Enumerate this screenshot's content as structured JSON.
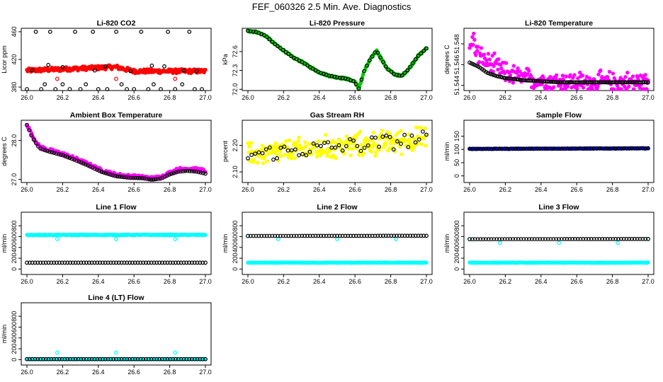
{
  "figure_title": "FEF_060326  2.5 Min. Ave. Diagnostics",
  "chart_data": [
    {
      "type": "scatter",
      "title": "Li-820 CO2",
      "xlabel": "",
      "ylabel": "Licor ppm",
      "xlim": [
        26.0,
        27.0
      ],
      "ylim": [
        375,
        465
      ],
      "xticks": [
        "26.0",
        "26.2",
        "26.4",
        "26.6",
        "26.8",
        "27.0"
      ],
      "yticks": [
        "380",
        "420",
        "460"
      ],
      "series": [
        {
          "name": "high-rate",
          "color": "#ff0000",
          "style": "dense",
          "x": [
            26.0,
            26.5,
            26.6,
            27.0
          ],
          "values": [
            404,
            409,
            403,
            403
          ],
          "spread": 3
        },
        {
          "name": "outliers",
          "color": "#ff0000",
          "style": "sparse",
          "x": [
            26.17,
            26.5,
            26.83
          ],
          "values": [
            392,
            392,
            392
          ]
        },
        {
          "name": "averages",
          "color": "#000000",
          "style": "open",
          "x": [
            26.0,
            26.05,
            26.08,
            26.1,
            26.13,
            26.16,
            26.2,
            26.24,
            26.27,
            26.3,
            26.33,
            26.37,
            26.4,
            26.45,
            26.5,
            26.53,
            26.56,
            26.6,
            26.64,
            26.68,
            26.71,
            26.75,
            26.79,
            26.83,
            26.87,
            26.91,
            26.94,
            26.98,
            26.03,
            26.2,
            26.38,
            26.58,
            26.77,
            26.95,
            26.12,
            26.44,
            26.7,
            26.88
          ],
          "values": [
            376,
            460,
            376,
            384,
            460,
            376,
            384,
            376,
            460,
            376,
            384,
            460,
            376,
            376,
            460,
            384,
            376,
            376,
            460,
            376,
            384,
            376,
            460,
            376,
            384,
            460,
            376,
            376,
            404,
            409,
            404,
            403,
            410,
            403,
            412,
            410,
            411,
            404
          ]
        }
      ]
    },
    {
      "type": "scatter",
      "title": "Li-820 Pressure",
      "xlabel": "",
      "ylabel": "kPa",
      "xlim": [
        26.0,
        27.0
      ],
      "ylim": [
        71.98,
        72.97
      ],
      "xticks": [
        "26.0",
        "26.2",
        "26.4",
        "26.6",
        "26.8",
        "27.0"
      ],
      "yticks": [
        "72.0",
        "72.3",
        "72.6"
      ],
      "series": [
        {
          "name": "high-rate",
          "color": "#00cc00",
          "style": "dense",
          "x": [
            26.0,
            26.05,
            26.1,
            26.15,
            26.2,
            26.25,
            26.3,
            26.35,
            26.4,
            26.45,
            26.5,
            26.55,
            26.6,
            26.62,
            26.65,
            26.68,
            26.72,
            26.75,
            26.78,
            26.82,
            26.86,
            26.9,
            26.95,
            27.0
          ],
          "values": [
            72.93,
            72.91,
            72.85,
            72.72,
            72.62,
            72.51,
            72.44,
            72.35,
            72.27,
            72.22,
            72.19,
            72.17,
            72.12,
            72.0,
            72.28,
            72.45,
            72.62,
            72.47,
            72.33,
            72.24,
            72.21,
            72.32,
            72.52,
            72.65
          ],
          "spread": 0.015
        },
        {
          "name": "averages",
          "color": "#000000",
          "style": "open",
          "x": [
            26.0,
            26.05,
            26.1,
            26.15,
            26.2,
            26.25,
            26.3,
            26.35,
            26.4,
            26.45,
            26.5,
            26.55,
            26.6,
            26.62,
            26.65,
            26.68,
            26.72,
            26.75,
            26.78,
            26.82,
            26.86,
            26.9,
            26.95,
            27.0
          ],
          "values": [
            72.93,
            72.91,
            72.85,
            72.72,
            72.62,
            72.51,
            72.44,
            72.35,
            72.27,
            72.22,
            72.19,
            72.17,
            72.12,
            72.0,
            72.28,
            72.45,
            72.62,
            72.47,
            72.33,
            72.24,
            72.21,
            72.32,
            72.52,
            72.65
          ],
          "step": 6
        }
      ]
    },
    {
      "type": "scatter",
      "title": "Li-820 Temperature",
      "xlabel": "",
      "ylabel": "degrees C",
      "xlim": [
        26.0,
        27.0
      ],
      "ylim": [
        51.5435,
        51.5495
      ],
      "xticks": [
        "26.0",
        "26.2",
        "26.4",
        "26.6",
        "26.8",
        "27.0"
      ],
      "yticks": [
        "51.544",
        "51.546",
        "51.548"
      ],
      "series": [
        {
          "name": "high-rate",
          "color": "#ff00ff",
          "style": "noisy",
          "x": [
            26.0,
            26.02,
            26.05,
            26.1,
            26.15,
            26.2,
            26.3,
            26.4,
            26.5,
            26.6,
            26.7,
            26.8,
            26.9,
            27.0
          ],
          "values": [
            51.5475,
            51.5485,
            51.5468,
            51.5462,
            51.5458,
            51.5452,
            51.5447,
            51.5445,
            51.5444,
            51.5443,
            51.5443,
            51.5443,
            51.5443,
            51.5443
          ],
          "spread": 0.0009
        },
        {
          "name": "averages",
          "color": "#000000",
          "style": "open",
          "x": [
            26.0,
            26.05,
            26.1,
            26.15,
            26.2,
            26.3,
            26.4,
            26.5,
            26.6,
            26.7,
            26.8,
            26.9,
            27.0
          ],
          "values": [
            51.5462,
            51.5458,
            51.5452,
            51.5449,
            51.5447,
            51.5445,
            51.5444,
            51.5443,
            51.5443,
            51.5443,
            51.5443,
            51.5443,
            51.5443
          ],
          "step": 4
        }
      ]
    },
    {
      "type": "scatter",
      "title": "Ambient Box Temperature",
      "xlabel": "",
      "ylabel": "degrees C",
      "xlim": [
        26.0,
        27.0
      ],
      "ylim": [
        26.92,
        28.52
      ],
      "xticks": [
        "26.0",
        "26.2",
        "26.4",
        "26.6",
        "26.8",
        "27.0"
      ],
      "yticks": [
        "27.0",
        "28.0"
      ],
      "series": [
        {
          "name": "high-rate",
          "color": "#ff00ff",
          "style": "dense",
          "x": [
            26.0,
            26.03,
            26.07,
            26.12,
            26.2,
            26.28,
            26.35,
            26.42,
            26.5,
            26.58,
            26.65,
            26.7,
            26.75,
            26.8,
            26.85,
            26.9,
            26.95,
            27.0
          ],
          "values": [
            28.42,
            28.12,
            27.84,
            27.76,
            27.66,
            27.52,
            27.38,
            27.23,
            27.12,
            27.08,
            27.06,
            27.03,
            27.06,
            27.17,
            27.26,
            27.28,
            27.26,
            27.22
          ],
          "spread": 0.04
        },
        {
          "name": "averages",
          "color": "#000000",
          "style": "open",
          "x": [
            26.0,
            26.03,
            26.07,
            26.12,
            26.2,
            26.28,
            26.35,
            26.42,
            26.5,
            26.58,
            26.65,
            26.7,
            26.75,
            26.8,
            26.85,
            26.9,
            26.95,
            27.0
          ],
          "values": [
            28.4,
            28.08,
            27.8,
            27.72,
            27.62,
            27.48,
            27.34,
            27.19,
            27.08,
            27.04,
            27.03,
            26.99,
            27.02,
            27.13,
            27.2,
            27.22,
            27.2,
            27.15
          ],
          "step": 5
        }
      ]
    },
    {
      "type": "scatter",
      "title": "Gas Stream RH",
      "xlabel": "",
      "ylabel": "percent",
      "xlim": [
        26.0,
        27.0
      ],
      "ylim": [
        2.06,
        2.295
      ],
      "xticks": [
        "26.0",
        "26.2",
        "26.4",
        "26.6",
        "26.8",
        "27.0"
      ],
      "yticks": [
        "2.10",
        "2.20"
      ],
      "series": [
        {
          "name": "high-rate",
          "color": "#ffff00",
          "style": "noisy",
          "x": [
            26.0,
            27.0
          ],
          "values": [
            2.165,
            2.225
          ],
          "spread": 0.04
        },
        {
          "name": "averages",
          "color": "#000000",
          "style": "open-noisy",
          "x": [
            26.0,
            27.0
          ],
          "values": [
            2.165,
            2.225
          ],
          "spread": 0.03,
          "step": 8
        }
      ]
    },
    {
      "type": "scatter",
      "title": "Sample Flow",
      "xlabel": "",
      "ylabel": "ml/min",
      "xlim": [
        26.0,
        27.0
      ],
      "ylim": [
        -25,
        210
      ],
      "xticks": [
        "26.0",
        "26.2",
        "26.4",
        "26.6",
        "26.8",
        "27.0"
      ],
      "yticks": [
        "0",
        "50",
        "100",
        "150"
      ],
      "series": [
        {
          "name": "high-rate",
          "color": "#0000cc",
          "style": "dense",
          "x": [
            26.0,
            27.0
          ],
          "values": [
            102,
            104
          ],
          "spread": 1.2
        },
        {
          "name": "averages",
          "color": "#000000",
          "style": "open",
          "x": [
            26.0,
            27.0
          ],
          "values": [
            102,
            104
          ],
          "step": 6
        }
      ]
    },
    {
      "type": "scatter",
      "title": "Line 1 Flow",
      "xlabel": "",
      "ylabel": "ml/min",
      "xlim": [
        26.0,
        27.0
      ],
      "ylim": [
        -100,
        1050
      ],
      "xticks": [
        "26.0",
        "26.2",
        "26.4",
        "26.6",
        "26.8",
        "27.0"
      ],
      "yticks": [
        "0",
        "200",
        "400",
        "600",
        "800"
      ],
      "series": [
        {
          "name": "high-rate",
          "color": "#00ffff",
          "style": "dense",
          "x": [
            26.0,
            27.0
          ],
          "values": [
            630,
            632
          ],
          "spread": 8
        },
        {
          "name": "high-rate-dips",
          "color": "#00ffff",
          "style": "sparse",
          "x": [
            26.17,
            26.5,
            26.83
          ],
          "values": [
            555,
            555,
            555
          ]
        },
        {
          "name": "averages",
          "color": "#000000",
          "style": "open",
          "x": [
            26.0,
            27.0
          ],
          "values": [
            118,
            118
          ],
          "step": 6
        }
      ]
    },
    {
      "type": "scatter",
      "title": "Line 2 Flow",
      "xlabel": "",
      "ylabel": "ml/min",
      "xlim": [
        26.0,
        27.0
      ],
      "ylim": [
        -100,
        1050
      ],
      "xticks": [
        "26.0",
        "26.2",
        "26.4",
        "26.6",
        "26.8",
        "27.0"
      ],
      "yticks": [
        "0",
        "200",
        "400",
        "600",
        "800"
      ],
      "series": [
        {
          "name": "high-rate",
          "color": "#00ffff",
          "style": "dense",
          "x": [
            26.0,
            27.0
          ],
          "values": [
            118,
            118
          ],
          "spread": 5
        },
        {
          "name": "high-rate-upper",
          "color": "#00ffff",
          "style": "sparse",
          "x": [
            26.0,
            26.17,
            26.5,
            26.83
          ],
          "values": [
            610,
            555,
            555,
            555
          ]
        },
        {
          "name": "averages",
          "color": "#000000",
          "style": "open",
          "x": [
            26.0,
            27.0
          ],
          "values": [
            612,
            615
          ],
          "step": 6
        }
      ]
    },
    {
      "type": "scatter",
      "title": "Line 3 Flow",
      "xlabel": "",
      "ylabel": "ml/min",
      "xlim": [
        26.0,
        27.0
      ],
      "ylim": [
        -100,
        1050
      ],
      "xticks": [
        "26.0",
        "26.2",
        "26.4",
        "26.6",
        "26.8",
        "27.0"
      ],
      "yticks": [
        "0",
        "200",
        "400",
        "600",
        "800"
      ],
      "series": [
        {
          "name": "high-rate",
          "color": "#00ffff",
          "style": "dense",
          "x": [
            26.0,
            27.0
          ],
          "values": [
            118,
            118
          ],
          "spread": 5
        },
        {
          "name": "high-rate-upper",
          "color": "#00ffff",
          "style": "sparse",
          "x": [
            26.0,
            26.17,
            26.5,
            26.83,
            27.0
          ],
          "values": [
            555,
            485,
            485,
            485,
            555
          ]
        },
        {
          "name": "averages",
          "color": "#000000",
          "style": "open",
          "x": [
            26.0,
            27.0
          ],
          "values": [
            552,
            556
          ],
          "step": 6
        }
      ]
    },
    {
      "type": "scatter",
      "title": "Line 4 (LT) Flow",
      "xlabel": "",
      "ylabel": "ml/min",
      "xlim": [
        26.0,
        27.0
      ],
      "ylim": [
        -100,
        1050
      ],
      "xticks": [
        "26.0",
        "26.2",
        "26.4",
        "26.6",
        "26.8",
        "27.0"
      ],
      "yticks": [
        "0",
        "200",
        "400",
        "600",
        "800"
      ],
      "series": [
        {
          "name": "high-rate",
          "color": "#00ffff",
          "style": "dense",
          "x": [
            26.0,
            27.0
          ],
          "values": [
            8,
            8
          ],
          "spread": 3
        },
        {
          "name": "high-rate-spikes",
          "color": "#00ffff",
          "style": "sparse",
          "x": [
            26.17,
            26.5,
            26.83
          ],
          "values": [
            130,
            130,
            130
          ]
        },
        {
          "name": "averages",
          "color": "#000000",
          "style": "open",
          "x": [
            26.0,
            27.0
          ],
          "values": [
            8,
            8
          ],
          "step": 6
        }
      ]
    }
  ]
}
